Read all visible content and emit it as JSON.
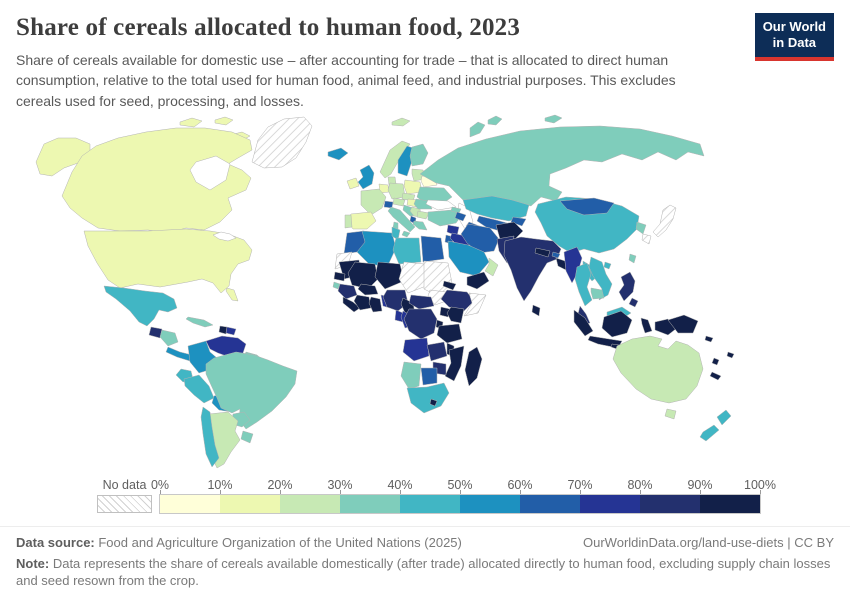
{
  "header": {
    "title": "Share of cereals allocated to human food, 2023",
    "subtitle": "Share of cereals available for domestic use – after accounting for trade – that is allocated to direct human consumption, relative to the total used for human food, animal feed, and industrial purposes. This excludes cereals used for seed, processing, and losses.",
    "logo_line1": "Our World",
    "logo_line2": "in Data"
  },
  "legend": {
    "no_data_label": "No data",
    "tick_labels": [
      "0%",
      "10%",
      "20%",
      "30%",
      "40%",
      "50%",
      "60%",
      "70%",
      "80%",
      "90%",
      "100%"
    ]
  },
  "footer": {
    "data_source_label": "Data source:",
    "data_source_text": " Food and Agriculture Organization of the United Nations (2025)",
    "link": "OurWorldinData.org/land-use-diets",
    "license": " | CC BY",
    "note_label": "Note:",
    "note_text": " Data represents the share of cereals available domestically (after trade) allocated directly to human food, excluding supply chain losses and seed resown from the crop."
  },
  "chart_data": {
    "type": "choropleth-map",
    "title": "Share of cereals allocated to human food",
    "year": 2023,
    "unit": "share of cereal supply used directly as human food (%)",
    "legend_position": "bottom",
    "legend_bins": [
      {
        "label": "0-10%",
        "color": "#ffffd9"
      },
      {
        "label": "10-20%",
        "color": "#edf8b1"
      },
      {
        "label": "20-30%",
        "color": "#c7e9b4"
      },
      {
        "label": "30-40%",
        "color": "#7fcdbb"
      },
      {
        "label": "40-50%",
        "color": "#41b6c4"
      },
      {
        "label": "50-60%",
        "color": "#1d91c0"
      },
      {
        "label": "60-70%",
        "color": "#225ea8"
      },
      {
        "label": "70-80%",
        "color": "#253494"
      },
      {
        "label": "80-90%",
        "color": "#23306e"
      },
      {
        "label": "90-100%",
        "color": "#122049"
      }
    ],
    "no_data_color": "hatched",
    "regions": {
      "Greenland": "no-data",
      "Canada": 1,
      "Canadian Arctic": 1,
      "Alaska": 1,
      "United States": 1,
      "Mexico": 4,
      "Guatemala": 8,
      "Honduras": 3,
      "Costa Rica & Panama": 5,
      "Cuba": 3,
      "Haiti": 9,
      "Dominican Republic": 7,
      "Venezuela": 7,
      "Colombia": 5,
      "Guyana & Suriname": 3,
      "French Guiana": "no-data",
      "Ecuador": 4,
      "Peru": 4,
      "Bolivia": 5,
      "Brazil": 3,
      "Paraguay": 3,
      "Uruguay": 3,
      "Argentina": 2,
      "Chile": 4,
      "Iceland": 5,
      "Ireland": 1,
      "United Kingdom": 5,
      "Norway": 2,
      "Svalbard": 2,
      "Sweden": 5,
      "Finland": 3,
      "Baltics": 2,
      "Denmark": 2,
      "Benelux": 1,
      "Germany": 2,
      "Poland": 1,
      "Belarus": 0,
      "Ukraine": 3,
      "Czechia": 2,
      "Austria": 2,
      "Switzerland": 6,
      "France": 2,
      "Spain": 1,
      "Portugal": 2,
      "Italy": 3,
      "Croatia": 3,
      "Hungary": 1,
      "Serbia": 2,
      "Romania": 3,
      "Bulgaria": 2,
      "Albania": 6,
      "Greece": 3,
      "Turkey": 3,
      "Russia": 3,
      "Novaya Zemlya": 3,
      "Kazakhstan": 4,
      "Uzbekistan": 6,
      "Turkmenistan": 6,
      "Kyrgyzstan": 6,
      "Tajikistan": 8,
      "Georgia": 3,
      "Azerbaijan": 6,
      "Syria": 7,
      "Jordan": 6,
      "Iraq": 7,
      "Iran": 6,
      "Afghanistan": 9,
      "Saudi Arabia": 5,
      "Yemen": 9,
      "Oman": 2,
      "Pakistan": 8,
      "India": 8,
      "Nepal": 9,
      "Bhutan": 6,
      "Bangladesh": 9,
      "Sri Lanka": 9,
      "China": 4,
      "Mongolia": 6,
      "North Korea": 3,
      "South Korea": "no-data",
      "Japan": "no-data",
      "Taiwan": 3,
      "Hainan": 4,
      "Myanmar": 7,
      "Laos": 4,
      "Thailand": 4,
      "Vietnam": 4,
      "Cambodia": 3,
      "Malaysia": 8,
      "Brunei": 4,
      "Indonesia": 9,
      "Timor-Leste": 5,
      "Philippines": 8,
      "Papua New Guinea": 9,
      "Solomon Islands": 9,
      "Vanuatu": 9,
      "Fiji": 9,
      "New Caledonia": 9,
      "Australia": 2,
      "Tasmania": 2,
      "New Zealand": 4,
      "Morocco": 6,
      "Western Sahara": "no-data",
      "Algeria": 5,
      "Tunisia": 4,
      "Libya": 4,
      "Egypt": 6,
      "Mauritania": 9,
      "Senegal": 9,
      "Guinea-Bissau": 3,
      "Guinea": 8,
      "Sierra Leone & Liberia": 9,
      "Mali": 9,
      "Burkina Faso": 9,
      "Cote d'Ivoire": 9,
      "Ghana": 9,
      "Togo & Benin": 7,
      "Niger": 9,
      "Nigeria": 8,
      "Chad": "no-data",
      "Sudan": "no-data",
      "South Sudan": "no-data",
      "Eritrea": 9,
      "Ethiopia": 8,
      "Somalia": "no-data",
      "Cameroon": 9,
      "Central African Republic": 8,
      "Gabon": 7,
      "Congo": 7,
      "Democratic Republic of Congo": 8,
      "Uganda": 9,
      "Kenya": 9,
      "Rwanda & Burundi": 9,
      "Tanzania": 9,
      "Angola": 7,
      "Zambia": 8,
      "Malawi": 9,
      "Mozambique": 9,
      "Zimbabwe": 8,
      "Botswana": 6,
      "Namibia": 3,
      "South Africa": 4,
      "Lesotho": 9,
      "Madagascar": 9
    }
  }
}
